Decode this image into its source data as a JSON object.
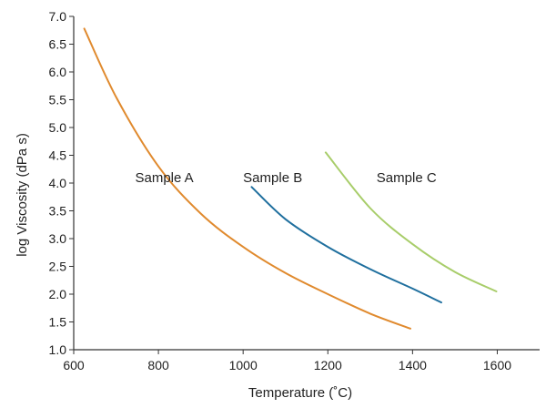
{
  "chart_data": {
    "type": "line",
    "title": "",
    "xlabel": "Temperature (˚C)",
    "ylabel": "log Viscosity (dPa s)",
    "xlim": [
      600,
      1700
    ],
    "ylim": [
      1.0,
      7.0
    ],
    "x_ticks": [
      "600",
      "800",
      "1000",
      "1200",
      "1400",
      "1600"
    ],
    "y_ticks": [
      "1.0",
      "1.5",
      "2.0",
      "2.5",
      "3.0",
      "3.5",
      "4.0",
      "4.5",
      "5.0",
      "5.5",
      "6.0",
      "6.5",
      "7.0"
    ],
    "grid": false,
    "series": [
      {
        "name": "Sample A",
        "color": "#e08a2e",
        "points": [
          [
            625,
            6.78
          ],
          [
            700,
            5.55
          ],
          [
            800,
            4.3
          ],
          [
            900,
            3.45
          ],
          [
            1000,
            2.85
          ],
          [
            1100,
            2.38
          ],
          [
            1200,
            2.0
          ],
          [
            1300,
            1.65
          ],
          [
            1395,
            1.38
          ]
        ]
      },
      {
        "name": "Sample B",
        "color": "#1f6f9e",
        "points": [
          [
            1020,
            3.93
          ],
          [
            1100,
            3.35
          ],
          [
            1200,
            2.85
          ],
          [
            1300,
            2.45
          ],
          [
            1400,
            2.1
          ],
          [
            1468,
            1.85
          ]
        ]
      },
      {
        "name": "Sample C",
        "color": "#a8cd6a",
        "points": [
          [
            1195,
            4.55
          ],
          [
            1300,
            3.55
          ],
          [
            1400,
            2.9
          ],
          [
            1500,
            2.4
          ],
          [
            1598,
            2.05
          ]
        ]
      }
    ],
    "annotations": [
      {
        "text": "Sample A",
        "x": 745,
        "y": 4.1
      },
      {
        "text": "Sample B",
        "x": 1000,
        "y": 4.1
      },
      {
        "text": "Sample C",
        "x": 1315,
        "y": 4.1
      }
    ]
  }
}
